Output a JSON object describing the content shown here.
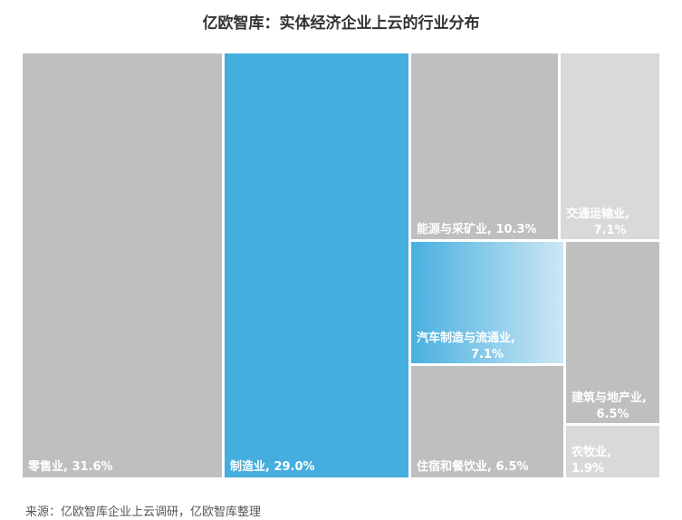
{
  "title": "亿欧智库：实体经济企业上云的行业分布",
  "source": "来源：亿欧智库企业上云调研，亿欧智库整理",
  "colors": {
    "gray": "#bfbfbf",
    "light_gray": "#d9d9d9",
    "blue": "#45aede",
    "gradient_start": "#48b0e0",
    "gradient_end": "#cde7f4",
    "label": "#ffffff"
  },
  "chart_data": {
    "type": "treemap",
    "unit": "%",
    "items": [
      {
        "name": "零售业",
        "value": 31.6,
        "label": "零售业, 31.6%"
      },
      {
        "name": "制造业",
        "value": 29.0,
        "label": "制造业, 29.0%"
      },
      {
        "name": "能源与采矿业",
        "value": 10.3,
        "label": "能源与采矿业, 10.3%"
      },
      {
        "name": "交通运输业",
        "value": 7.1,
        "label": [
          "交通运输业,",
          "7.1%"
        ]
      },
      {
        "name": "汽车制造与流通业",
        "value": 7.1,
        "label": [
          "汽车制造与流通业,",
          "7.1%"
        ]
      },
      {
        "name": "建筑与地产业",
        "value": 6.5,
        "label": [
          "建筑与地产业,",
          "6.5%"
        ]
      },
      {
        "name": "住宿和餐饮业",
        "value": 6.5,
        "label": "住宿和餐饮业, 6.5%"
      },
      {
        "name": "农牧业",
        "value": 1.9,
        "label": [
          "农牧业,",
          "1.9%"
        ]
      }
    ]
  }
}
